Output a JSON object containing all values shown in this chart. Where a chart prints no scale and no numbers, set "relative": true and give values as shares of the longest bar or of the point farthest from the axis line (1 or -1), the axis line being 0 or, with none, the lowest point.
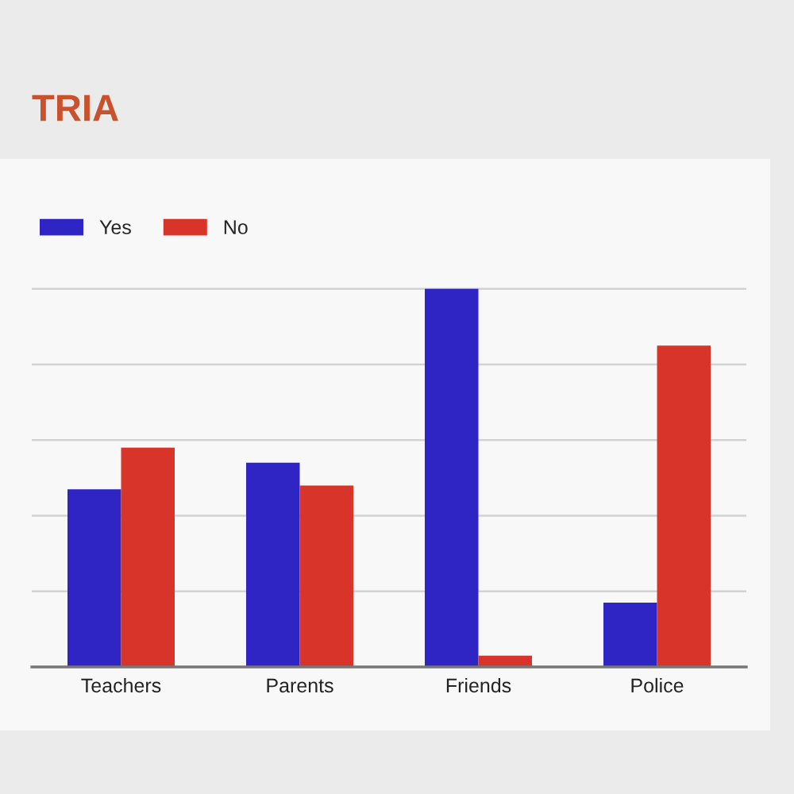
{
  "chart_data": {
    "type": "bar",
    "title": "TRIA",
    "categories": [
      "Teachers",
      "Parents",
      "Friends",
      "Police"
    ],
    "series": [
      {
        "name": "Yes",
        "color": "#2f25c4",
        "values": [
          0.47,
          0.54,
          1,
          0.17
        ]
      },
      {
        "name": "No",
        "color": "#d8342a",
        "values": [
          0.58,
          0.48,
          0.03,
          0.85
        ]
      }
    ],
    "relative": true,
    "grid": "y",
    "legend": "top left",
    "tick_labels": "x"
  }
}
